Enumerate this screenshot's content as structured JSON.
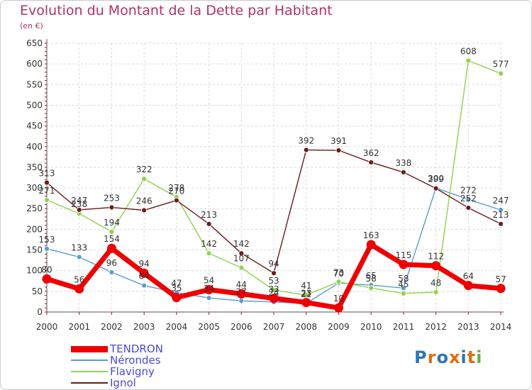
{
  "chart_data": {
    "type": "line",
    "title": "Evolution du Montant de la Dette par Habitant",
    "unit": "(en €)",
    "x": [
      "2000",
      "2001",
      "2002",
      "2003",
      "2004",
      "2005",
      "2006",
      "2007",
      "2008",
      "2009",
      "2010",
      "2011",
      "2012",
      "2013",
      "2014"
    ],
    "ylim": [
      0,
      650
    ],
    "yticks": [
      0,
      50,
      100,
      150,
      200,
      250,
      300,
      350,
      400,
      450,
      500,
      550,
      600,
      650
    ],
    "grid": true,
    "legend_position": "bottom-left",
    "series": [
      {
        "name": "TENDRON",
        "color": "#ee0000",
        "values": [
          80,
          56,
          154,
          94,
          35,
          54,
          44,
          33,
          23,
          10,
          163,
          115,
          112,
          64,
          57
        ]
      },
      {
        "name": "Nérondes",
        "color": "#5b9bd5",
        "values": [
          153,
          133,
          96,
          64,
          47,
          34,
          27,
          24,
          21,
          70,
          65,
          58,
          300,
          272,
          247
        ]
      },
      {
        "name": "Flavigny",
        "color": "#92d050",
        "values": [
          271,
          238,
          194,
          322,
          278,
          142,
          107,
          53,
          41,
          73,
          58,
          45,
          48,
          608,
          577
        ]
      },
      {
        "name": "Ignol",
        "color": "#6b1a1a",
        "values": [
          313,
          247,
          253,
          246,
          270,
          213,
          142,
          94,
          392,
          391,
          362,
          338,
          299,
          252,
          213
        ]
      }
    ]
  },
  "logo": {
    "text": "Proxiti"
  }
}
